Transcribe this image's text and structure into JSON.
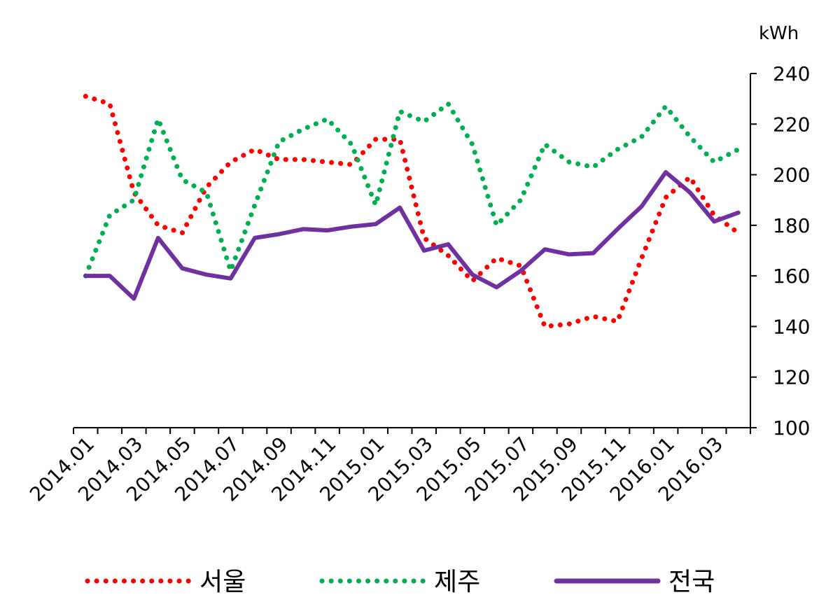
{
  "chart_data": {
    "type": "line",
    "title": "",
    "xlabel": "",
    "ylabel": "kWh",
    "ylim": [
      100,
      240
    ],
    "yticks": [
      100,
      120,
      140,
      160,
      180,
      200,
      220,
      240
    ],
    "x": [
      "2014.01",
      "2014.02",
      "2014.03",
      "2014.04",
      "2014.05",
      "2014.06",
      "2014.07",
      "2014.08",
      "2014.09",
      "2014.10",
      "2014.11",
      "2014.12",
      "2015.01",
      "2015.02",
      "2015.03",
      "2015.04",
      "2015.05",
      "2015.06",
      "2015.07",
      "2015.08",
      "2015.09",
      "2015.10",
      "2015.11",
      "2015.12",
      "2016.01",
      "2016.02",
      "2016.03",
      "2016.04"
    ],
    "xtick_labels": [
      "2014.01",
      "2014.03",
      "2014.05",
      "2014.07",
      "2014.09",
      "2014.11",
      "2015.01",
      "2015.03",
      "2015.05",
      "2015.07",
      "2015.09",
      "2015.11",
      "2016.01",
      "2016.03"
    ],
    "grid": false,
    "legend_position": "bottom",
    "y_axis_side": "right",
    "series": [
      {
        "name": "서울",
        "color": "#ff0000",
        "style": "dotted",
        "values": [
          231,
          228,
          193,
          180,
          177,
          195,
          205,
          210,
          206,
          206,
          205,
          204,
          214,
          214,
          175,
          168,
          158,
          167,
          164,
          140,
          141,
          144,
          142,
          167,
          191,
          199,
          184,
          177
        ]
      },
      {
        "name": "제주",
        "color": "#00b050",
        "style": "dotted",
        "values": [
          160,
          184,
          190,
          222,
          198,
          193,
          162,
          188,
          213,
          218,
          222,
          212,
          188,
          225,
          221,
          228,
          212,
          180,
          190,
          212,
          205,
          203,
          210,
          215,
          227,
          215,
          205,
          210
        ]
      },
      {
        "name": "전국",
        "color": "#7030a0",
        "style": "solid",
        "values": [
          160,
          160,
          151,
          175,
          163,
          160.5,
          159,
          175,
          176.5,
          178.5,
          178,
          179.5,
          180.5,
          187,
          170,
          172.5,
          160.5,
          155.5,
          162,
          170.5,
          168.5,
          169,
          178.5,
          187.5,
          201,
          193,
          181.5,
          185
        ]
      }
    ]
  }
}
